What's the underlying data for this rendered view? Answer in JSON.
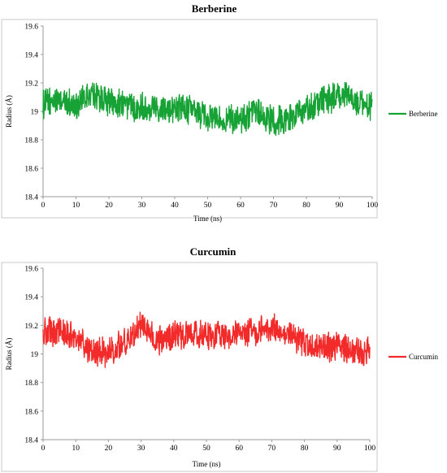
{
  "colors": {
    "berberine": "#17a236",
    "curcumin": "#f22a2a"
  },
  "chart_data": [
    {
      "type": "line",
      "title": "Berberine",
      "xlabel": "Time (ns)",
      "ylabel": "Radius (Å)",
      "xlim": [
        0,
        100
      ],
      "ylim": [
        18.4,
        19.6
      ],
      "xticks": [
        "0",
        "10",
        "20",
        "30",
        "40",
        "50",
        "60",
        "70",
        "80",
        "90",
        "100"
      ],
      "yticks": [
        "18.4",
        "18.6",
        "18.8",
        "19",
        "19.2",
        "19.4",
        "19.6"
      ],
      "legend_position": "right",
      "grid": false,
      "series": [
        {
          "name": "Berberine",
          "color": "#17a236",
          "x": [
            0,
            5,
            10,
            15,
            20,
            25,
            30,
            35,
            40,
            45,
            50,
            55,
            60,
            65,
            70,
            75,
            80,
            85,
            90,
            95,
            100
          ],
          "y": [
            19.05,
            19.08,
            19.04,
            19.12,
            19.07,
            19.05,
            19.03,
            19.03,
            19.02,
            19.01,
            18.96,
            18.95,
            18.93,
            18.99,
            18.93,
            18.95,
            19.01,
            19.08,
            19.11,
            19.08,
            19.03
          ],
          "fluctuation": 0.09,
          "min": 18.75,
          "max": 19.3
        }
      ]
    },
    {
      "type": "line",
      "title": "Curcumin",
      "xlabel": "Time (ns)",
      "ylabel": "Radius (Å)",
      "xlim": [
        0,
        100
      ],
      "ylim": [
        18.4,
        19.6
      ],
      "xticks": [
        "0",
        "10",
        "20",
        "30",
        "40",
        "50",
        "60",
        "70",
        "80",
        "90",
        "100"
      ],
      "yticks": [
        "18.4",
        "18.6",
        "18.8",
        "19",
        "19.2",
        "19.4",
        "19.6"
      ],
      "legend_position": "right",
      "grid": false,
      "series": [
        {
          "name": "Curcumin",
          "color": "#f22a2a",
          "x": [
            0,
            5,
            10,
            15,
            20,
            25,
            30,
            35,
            40,
            45,
            50,
            55,
            60,
            65,
            70,
            75,
            80,
            85,
            90,
            95,
            100
          ],
          "y": [
            19.15,
            19.16,
            19.12,
            19.02,
            19.0,
            19.08,
            19.2,
            19.08,
            19.14,
            19.13,
            19.14,
            19.12,
            19.15,
            19.16,
            19.18,
            19.15,
            19.07,
            19.05,
            19.05,
            19.02,
            19.0
          ],
          "fluctuation": 0.09,
          "min": 18.82,
          "max": 19.42
        }
      ]
    }
  ]
}
